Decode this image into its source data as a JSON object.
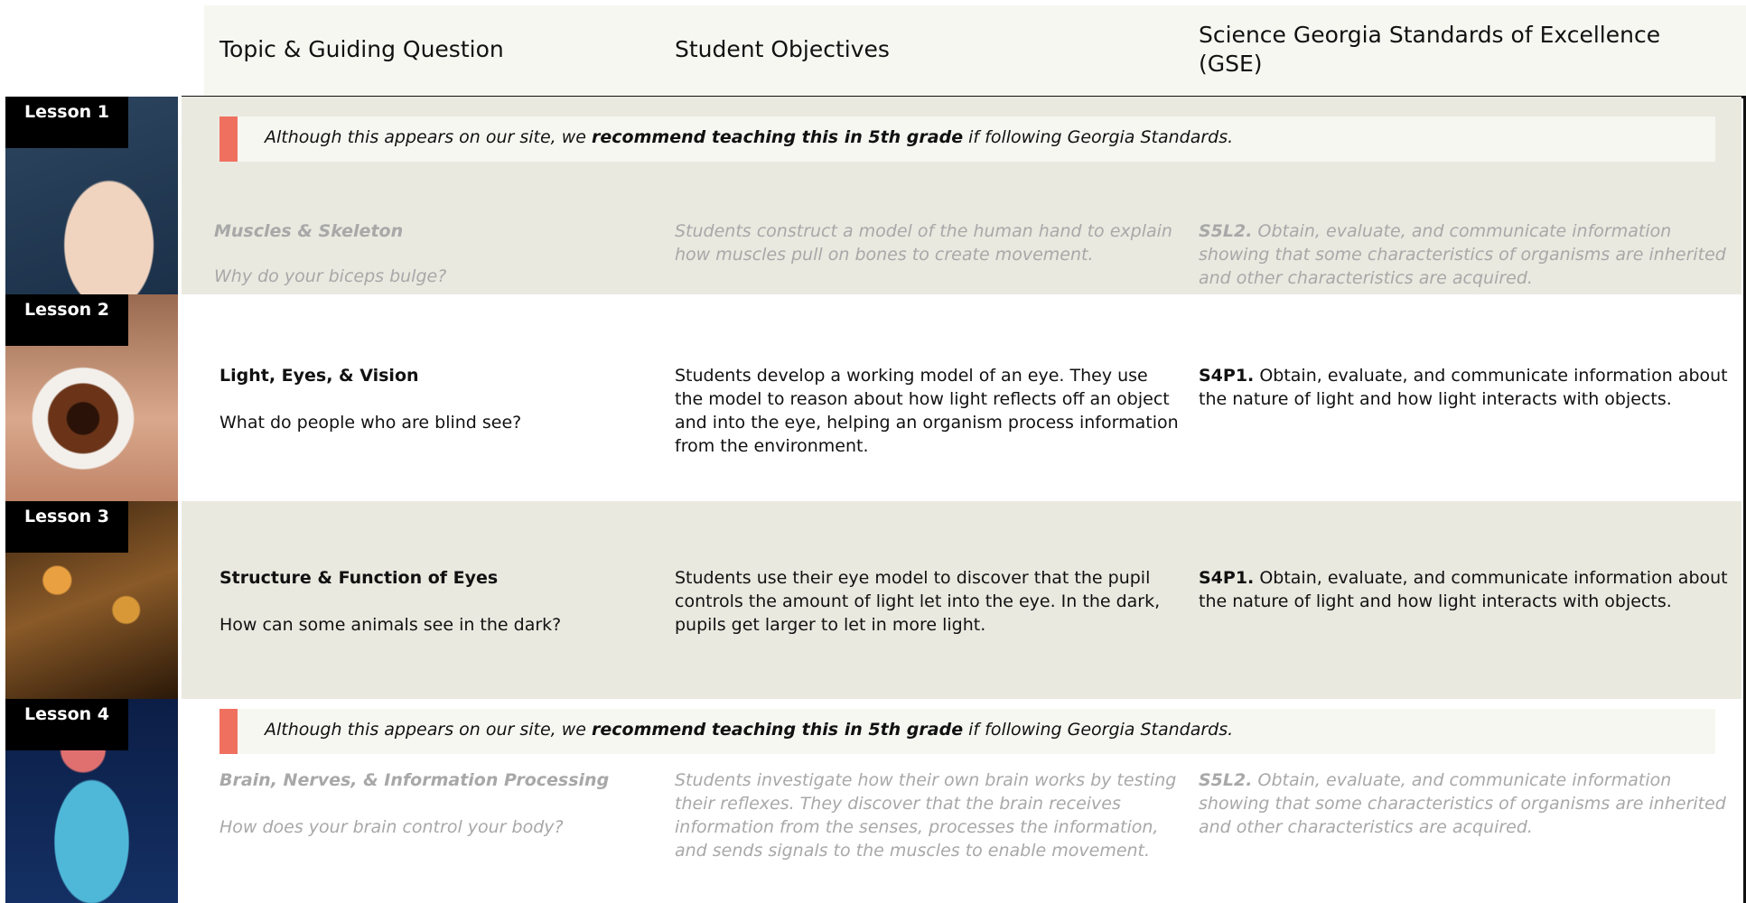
{
  "header": {
    "columns": [
      "Topic & Guiding Question",
      "Student Objectives",
      "Science Georgia Standards of Excellence (GSE)"
    ]
  },
  "lessons": [
    {
      "label": "Lesson 1",
      "notice": {
        "before": "Although this appears on our site, we",
        "bold": "recommend teaching this in 5th grade",
        "after": "if following Georgia Standards."
      },
      "topic": "Muscles & Skeleton",
      "question": "Why do your biceps bulge?",
      "objective": "Students construct a model of the human hand to explain how muscles pull on bones to create movement.",
      "standard_code": "S5L2.",
      "standard_text": "Obtain, evaluate, and communicate information showing that some characteristics of organisms are inherited and other characteristics are acquired."
    },
    {
      "label": "Lesson 2",
      "topic": "Light, Eyes, & Vision",
      "question": "What do people who are blind see?",
      "objective": "Students develop a working model of an eye. They use the model to reason about how light reflects off an object and into the eye, helping an organism process information from the environment.",
      "standard_code": "S4P1.",
      "standard_text": "Obtain, evaluate, and communicate information about the nature of light and how light interacts with objects."
    },
    {
      "label": "Lesson 3",
      "topic": "Structure & Function of Eyes",
      "question": "How can some animals see in the dark?",
      "objective": "Students use their eye model to discover that the pupil controls the amount of light let into the eye. In the dark, pupils get larger to let in more light.",
      "standard_code": "S4P1.",
      "standard_text": "Obtain, evaluate, and communicate information about the nature of light and how light interacts with objects."
    },
    {
      "label": "Lesson 4",
      "notice": {
        "before": "Although this appears on our site, we",
        "bold": "recommend teaching this in 5th grade",
        "after": "if following Georgia Standards."
      },
      "topic": "Brain, Nerves, & Information Processing",
      "question": "How does your brain control your body?",
      "objective": "Students investigate how their own brain works by testing their reflexes. They discover that the brain receives information from the senses, processes the information, and sends signals to the muscles to enable movement.",
      "standard_code": "S5L2.",
      "standard_text": "Obtain, evaluate, and communicate information showing that some characteristics of organisms are inherited and other characteristics are acquired."
    }
  ]
}
